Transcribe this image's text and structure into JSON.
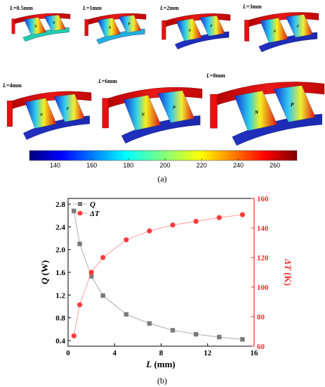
{
  "panel_a": {
    "caption": "(a)",
    "renders": [
      {
        "label_var": "L",
        "label_val": "=0.5mm"
      },
      {
        "label_var": "L",
        "label_val": "=1mm"
      },
      {
        "label_var": "L",
        "label_val": "=2mm"
      },
      {
        "label_var": "L",
        "label_val": "=3mm"
      },
      {
        "label_var": "L",
        "label_val": "=4mm"
      },
      {
        "label_var": "L",
        "label_val": "=6mm"
      },
      {
        "label_var": "L",
        "label_val": "=8mm"
      }
    ],
    "leg_labels": {
      "n": "N",
      "p": "P"
    },
    "colorbar": {
      "ticks": [
        "140",
        "160",
        "180",
        "200",
        "220",
        "240",
        "260"
      ],
      "range": [
        126,
        272
      ]
    }
  },
  "panel_b": {
    "caption": "(b)"
  },
  "chart_data": {
    "type": "line",
    "x": [
      0.5,
      1,
      2,
      3,
      5,
      7,
      9,
      11,
      13,
      15
    ],
    "series": [
      {
        "name": "Q",
        "axis": "left",
        "color": "#7a7a7a",
        "marker": "square",
        "values": [
          2.68,
          2.1,
          1.53,
          1.19,
          0.86,
          0.7,
          0.58,
          0.51,
          0.46,
          0.42
        ]
      },
      {
        "name": "ΔT",
        "axis": "right",
        "color": "#ff3b3b",
        "marker": "circle",
        "values": [
          67,
          88,
          110,
          120,
          132,
          138,
          142,
          144.5,
          147,
          149
        ]
      }
    ],
    "xlabel_var": "L",
    "xlabel_unit": " (mm)",
    "ylabel_left_var": "Q",
    "ylabel_left_unit": " (W)",
    "ylabel_right_var": "ΔT",
    "ylabel_right_unit": " (K)",
    "xlim": [
      0,
      16
    ],
    "ylim_left": [
      0.3,
      2.9
    ],
    "ylim_right": [
      60,
      160
    ],
    "xticks": [
      0,
      4,
      8,
      12,
      16
    ],
    "yticks_left": [
      0.4,
      0.8,
      1.2,
      1.6,
      2.0,
      2.4,
      2.8
    ],
    "yticks_right": [
      60,
      80,
      100,
      120,
      140,
      160
    ],
    "legend_position": "top-left",
    "grid": false
  },
  "colors": {
    "right_axis": "#ff2a2a",
    "left_series": "#7a7a7a",
    "right_series": "#ff3b3b"
  }
}
